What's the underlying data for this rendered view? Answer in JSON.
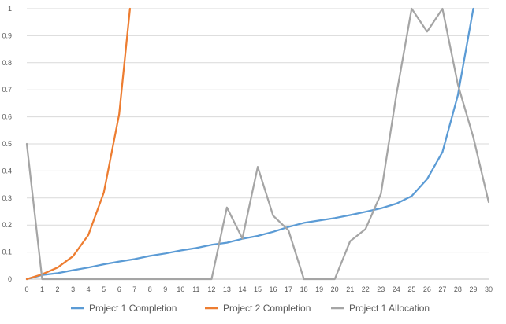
{
  "chart_data": {
    "type": "line",
    "title": "",
    "xlabel": "",
    "ylabel": "",
    "x": [
      0,
      1,
      2,
      3,
      4,
      5,
      6,
      7,
      8,
      9,
      10,
      11,
      12,
      13,
      14,
      15,
      16,
      17,
      18,
      19,
      20,
      21,
      22,
      23,
      24,
      25,
      26,
      27,
      28,
      29,
      30
    ],
    "xlim": [
      0,
      30
    ],
    "ylim": [
      0,
      1
    ],
    "yticks": [
      0,
      0.1,
      0.2,
      0.3,
      0.4,
      0.5,
      0.6,
      0.7,
      0.8,
      0.9,
      1
    ],
    "grid": true,
    "legend_position": "bottom",
    "series": [
      {
        "name": "Project 1 Completion",
        "color": "#5B9BD5",
        "x": [
          0,
          1,
          2,
          3,
          4,
          5,
          6,
          7,
          8,
          9,
          10,
          11,
          12,
          13,
          14,
          15,
          16,
          17,
          18,
          19,
          20,
          21,
          22,
          23,
          24,
          25,
          26,
          27,
          28,
          29
        ],
        "values": [
          0.0,
          0.015,
          0.022,
          0.033,
          0.043,
          0.055,
          0.065,
          0.074,
          0.086,
          0.095,
          0.106,
          0.115,
          0.127,
          0.135,
          0.149,
          0.16,
          0.175,
          0.193,
          0.208,
          0.217,
          0.226,
          0.237,
          0.249,
          0.262,
          0.279,
          0.307,
          0.37,
          0.47,
          0.68,
          1.0
        ]
      },
      {
        "name": "Project 2 Completion",
        "color": "#ED7D31",
        "x": [
          0,
          1,
          2,
          3,
          4,
          5,
          6,
          6.7
        ],
        "values": [
          0.0,
          0.018,
          0.043,
          0.085,
          0.163,
          0.32,
          0.61,
          1.0
        ]
      },
      {
        "name": "Project 1 Allocation",
        "color": "#A5A5A5",
        "x": [
          0,
          1,
          2,
          3,
          4,
          5,
          6,
          7,
          8,
          9,
          10,
          11,
          12,
          13,
          14,
          15,
          16,
          17,
          18,
          19,
          20,
          21,
          22,
          23,
          24,
          25,
          26,
          27,
          28,
          29,
          30
        ],
        "values": [
          0.5,
          0.0,
          0.0,
          0.0,
          0.0,
          0.0,
          0.0,
          0.0,
          0.0,
          0.0,
          0.0,
          0.0,
          0.0,
          0.265,
          0.15,
          0.415,
          0.235,
          0.18,
          0.0,
          0.0,
          0.0,
          0.14,
          0.185,
          0.315,
          0.68,
          1.0,
          0.915,
          1.0,
          0.72,
          0.525,
          0.285
        ]
      }
    ]
  }
}
